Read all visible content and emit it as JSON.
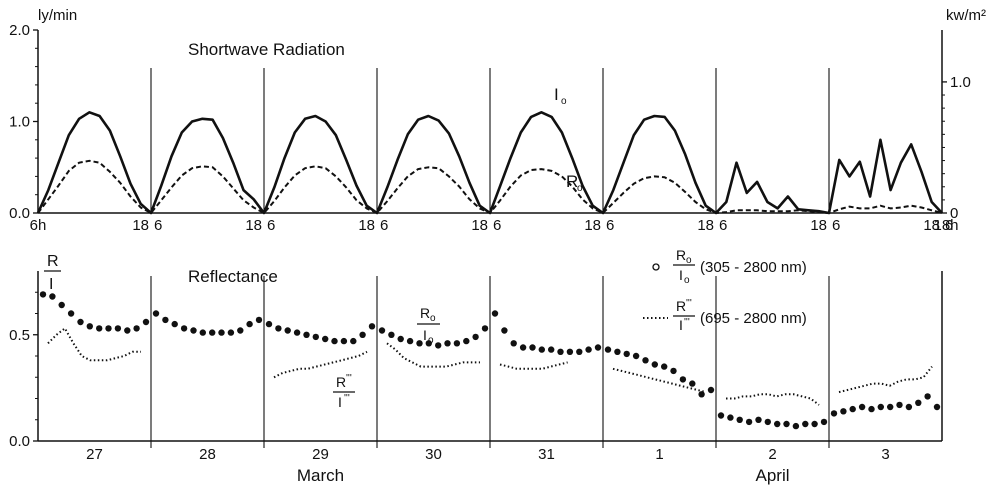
{
  "chart_data": [
    {
      "type": "line",
      "title": "Shortwave Radiation",
      "ylabel": "ly/min",
      "ylabel_right": "kw/m²",
      "ylim": [
        0,
        2.0
      ],
      "yticks": [
        "0.0",
        "1.0",
        "2.0"
      ],
      "ylim_right": [
        0,
        1.396
      ],
      "yticks_right": [
        "0",
        "1.0"
      ],
      "xticks": [
        "6h",
        "18",
        "6",
        "18",
        "6",
        "18",
        "6",
        "18",
        "6",
        "18",
        "6",
        "18",
        "6",
        "18",
        "6",
        "18",
        "6",
        "18h"
      ],
      "annotations": {
        "I": "I",
        "R": "R",
        "sub": "o"
      },
      "days": 8,
      "series": [
        {
          "name": "I",
          "style": "solid",
          "values": [
            [
              0,
              0.25,
              0.55,
              0.85,
              1.03,
              1.1,
              1.06,
              0.9,
              0.62,
              0.32,
              0.1,
              0
            ],
            [
              0,
              0.3,
              0.62,
              0.88,
              1.0,
              1.03,
              1.02,
              0.82,
              0.55,
              0.25,
              0.15,
              0
            ],
            [
              0,
              0.28,
              0.6,
              0.88,
              1.03,
              1.06,
              1.0,
              0.85,
              0.58,
              0.3,
              0.08,
              0
            ],
            [
              0,
              0.28,
              0.58,
              0.86,
              1.02,
              1.06,
              1.01,
              0.87,
              0.62,
              0.33,
              0.08,
              0
            ],
            [
              0,
              0.3,
              0.6,
              0.88,
              1.05,
              1.1,
              1.05,
              0.88,
              0.6,
              0.3,
              0.08,
              0
            ],
            [
              0,
              0.25,
              0.55,
              0.85,
              1.02,
              1.06,
              1.05,
              0.9,
              0.64,
              0.33,
              0.08,
              0
            ],
            [
              0,
              0.12,
              0.55,
              0.22,
              0.34,
              0.12,
              0.05,
              0.18,
              0.04,
              0.03,
              0.02,
              0
            ],
            [
              0,
              0.58,
              0.4,
              0.56,
              0.18,
              0.8,
              0.25,
              0.55,
              0.75,
              0.45,
              0.12,
              0
            ]
          ]
        },
        {
          "name": "R",
          "style": "dashed",
          "values": [
            [
              0,
              0.15,
              0.3,
              0.46,
              0.55,
              0.57,
              0.55,
              0.45,
              0.33,
              0.18,
              0.06,
              0
            ],
            [
              0,
              0.14,
              0.28,
              0.41,
              0.49,
              0.51,
              0.5,
              0.4,
              0.27,
              0.14,
              0.06,
              0
            ],
            [
              0,
              0.13,
              0.28,
              0.41,
              0.49,
              0.51,
              0.49,
              0.4,
              0.28,
              0.14,
              0.05,
              0
            ],
            [
              0,
              0.13,
              0.27,
              0.4,
              0.48,
              0.5,
              0.49,
              0.4,
              0.29,
              0.15,
              0.05,
              0
            ],
            [
              0,
              0.14,
              0.29,
              0.41,
              0.47,
              0.48,
              0.46,
              0.4,
              0.29,
              0.15,
              0.05,
              0
            ],
            [
              0,
              0.11,
              0.22,
              0.32,
              0.38,
              0.4,
              0.39,
              0.33,
              0.23,
              0.12,
              0.04,
              0
            ],
            [
              0,
              0.01,
              0.03,
              0.03,
              0.03,
              0.02,
              0.02,
              0.02,
              0.03,
              0.02,
              0.01,
              0
            ],
            [
              0,
              0.04,
              0.07,
              0.05,
              0.05,
              0.08,
              0.05,
              0.06,
              0.08,
              0.06,
              0.03,
              0
            ]
          ]
        }
      ]
    },
    {
      "type": "scatter",
      "title": "Reflectance",
      "ylabel": "R/I",
      "ylim": [
        0,
        0.8
      ],
      "yticks": [
        "0.0",
        "0.5"
      ],
      "xticks": [
        "27",
        "28",
        "29",
        "30",
        "31",
        "1",
        "2",
        "3"
      ],
      "month_labels": [
        "March",
        "April"
      ],
      "legend_position": "top-right",
      "legend": [
        {
          "marker": "o",
          "label": "(305 - 2800 nm)",
          "fraction": [
            "R",
            "I"
          ],
          "sub": "o"
        },
        {
          "marker": "dotted",
          "label": "(695 - 2800 nm)",
          "fraction": [
            "R",
            "I"
          ],
          "sup": "'''"
        }
      ],
      "annotations": [
        "R/I (305 - 2800 nm)",
        "R'''/I''' (695 - 2800 nm)"
      ],
      "series": [
        {
          "name": "R/I (305 - 2800 nm)",
          "style": "dots",
          "values": [
            [
              0.69,
              0.68,
              0.64,
              0.6,
              0.56,
              0.54,
              0.53,
              0.53,
              0.53,
              0.52,
              0.53,
              0.56
            ],
            [
              0.6,
              0.57,
              0.55,
              0.53,
              0.52,
              0.51,
              0.51,
              0.51,
              0.51,
              0.52,
              0.55,
              0.57
            ],
            [
              0.55,
              0.53,
              0.52,
              0.51,
              0.5,
              0.49,
              0.48,
              0.47,
              0.47,
              0.47,
              0.5,
              0.54
            ],
            [
              0.52,
              0.5,
              0.48,
              0.47,
              0.46,
              0.46,
              0.45,
              0.46,
              0.46,
              0.47,
              0.49,
              0.53
            ],
            [
              0.6,
              0.52,
              0.46,
              0.44,
              0.44,
              0.43,
              0.43,
              0.42,
              0.42,
              0.42,
              0.43,
              0.44
            ],
            [
              0.43,
              0.42,
              0.41,
              0.4,
              0.38,
              0.36,
              0.35,
              0.33,
              0.29,
              0.27,
              0.22,
              0.24
            ],
            [
              0.12,
              0.11,
              0.1,
              0.09,
              0.1,
              0.09,
              0.08,
              0.08,
              0.07,
              0.08,
              0.08,
              0.09
            ],
            [
              0.13,
              0.14,
              0.15,
              0.16,
              0.15,
              0.16,
              0.16,
              0.17,
              0.16,
              0.18,
              0.21,
              0.16
            ]
          ]
        },
        {
          "name": "R'''/I''' (695 - 2800 nm)",
          "style": "dotted",
          "values": [
            [
              0.46,
              0.5,
              0.53,
              0.46,
              0.4,
              0.38,
              0.38,
              0.38,
              0.39,
              0.4,
              0.42,
              0.42
            ],
            null,
            [
              0.3,
              0.32,
              0.33,
              0.34,
              0.34,
              0.35,
              0.36,
              0.37,
              0.38,
              0.39,
              0.4,
              0.42
            ],
            [
              0.46,
              0.43,
              0.39,
              0.37,
              0.35,
              0.35,
              0.35,
              0.35,
              0.36,
              0.37,
              0.37,
              0.37
            ],
            [
              0.36,
              0.35,
              0.34,
              0.34,
              0.34,
              0.34,
              0.35,
              0.36,
              0.37,
              null,
              null,
              null
            ],
            [
              0.34,
              0.33,
              0.32,
              0.31,
              0.3,
              0.29,
              0.28,
              0.27,
              0.26,
              0.25,
              0.24,
              0.23
            ],
            [
              0.2,
              0.2,
              0.21,
              0.21,
              0.22,
              0.22,
              0.21,
              0.22,
              0.22,
              0.21,
              0.2,
              0.17
            ],
            [
              0.23,
              0.24,
              0.25,
              0.26,
              0.27,
              0.27,
              0.26,
              0.28,
              0.29,
              0.29,
              0.3,
              0.35
            ]
          ]
        }
      ]
    }
  ]
}
